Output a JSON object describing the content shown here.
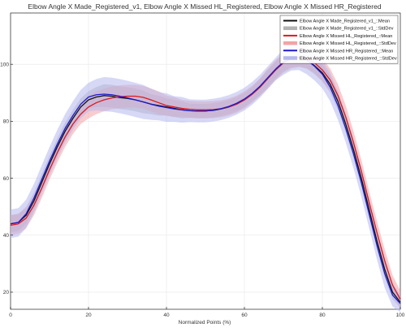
{
  "chart_data": {
    "type": "line",
    "title": "Elbow Angle X Made_Registered_v1, Elbow Angle X Missed HL_Registered, Elbow Angle X Missed HR_Registered",
    "xlabel": "Normalized Points (%)",
    "ylabel": "",
    "xlim": [
      0,
      100
    ],
    "ylim": [
      14,
      118
    ],
    "grid": true,
    "legend_position": "top-right",
    "x_ticks": [
      {
        "value": 0,
        "label": "0"
      },
      {
        "value": 20,
        "label": "20"
      },
      {
        "value": 40,
        "label": "40"
      },
      {
        "value": 60,
        "label": "60"
      },
      {
        "value": 80,
        "label": "80"
      },
      {
        "value": 100,
        "label": "100"
      }
    ],
    "y_ticks": [
      {
        "value": 20,
        "label": "20"
      },
      {
        "value": 40,
        "label": "40"
      },
      {
        "value": 60,
        "label": "60"
      },
      {
        "value": 80,
        "label": "80"
      },
      {
        "value": 100,
        "label": "100"
      }
    ],
    "x": [
      0,
      2,
      4,
      6,
      8,
      10,
      12,
      14,
      16,
      18,
      20,
      22,
      24,
      26,
      28,
      30,
      32,
      34,
      36,
      38,
      40,
      42,
      44,
      46,
      48,
      50,
      52,
      54,
      56,
      58,
      60,
      62,
      64,
      66,
      68,
      70,
      72,
      74,
      76,
      78,
      80,
      82,
      84,
      86,
      88,
      90,
      92,
      94,
      96,
      98,
      100
    ],
    "series": [
      {
        "name": "Elbow Angle X Made_Registered_v1_::Mean",
        "std_name": "Elbow Angle X Made_Registered_v1_::StdDev",
        "color": "#111111",
        "band_color": "#b3b3b3",
        "values": [
          44,
          44.5,
          47,
          52,
          58.5,
          65,
          71,
          76.5,
          81,
          85,
          87.5,
          88.5,
          89,
          88.8,
          88.3,
          88,
          87.5,
          86.8,
          86,
          85.5,
          85,
          84.5,
          84,
          83.7,
          83.6,
          83.6,
          83.8,
          84.3,
          85,
          86,
          87.5,
          89.5,
          92,
          95,
          98,
          100.5,
          102,
          102.3,
          101.5,
          99.5,
          97,
          93,
          87,
          79,
          70,
          60,
          49,
          38,
          28,
          20,
          16.5
        ],
        "std": [
          3,
          3,
          3,
          3,
          3,
          3,
          3,
          3,
          3,
          3,
          3,
          3.5,
          4,
          4,
          4,
          4,
          4,
          4,
          3.5,
          3.5,
          3,
          3,
          3,
          2.5,
          2.5,
          2.5,
          2.5,
          2.5,
          2.5,
          2.5,
          2.5,
          2.5,
          3,
          3,
          3,
          3,
          3,
          3,
          3,
          3,
          3,
          3,
          3,
          3,
          3,
          3,
          3,
          3,
          3,
          2.5,
          2
        ]
      },
      {
        "name": "Elbow Angle X Missed HL_Registered_::Mean",
        "std_name": "Elbow Angle X Missed HL_Registered_::StdDev",
        "color": "#e0161b",
        "band_color": "#f4a3a5",
        "values": [
          43.5,
          44,
          46,
          50.5,
          56.5,
          63,
          69,
          74.5,
          79,
          82.5,
          85,
          86.5,
          87.5,
          88.2,
          88.6,
          88.8,
          88.8,
          88.4,
          87.5,
          86.5,
          85.5,
          85,
          84.5,
          84.2,
          84,
          84,
          84.1,
          84.4,
          85,
          86,
          87.5,
          89.5,
          92,
          95,
          98,
          100.5,
          102,
          102.5,
          102,
          100.5,
          98,
          94.5,
          89,
          81.5,
          72.5,
          62.5,
          51.5,
          41,
          31,
          22.5,
          17.5
        ],
        "std": [
          3.5,
          3.5,
          3.5,
          3.5,
          3.5,
          3.5,
          3.5,
          3.5,
          3.5,
          3.5,
          4,
          4,
          4,
          4,
          4,
          4,
          4,
          4,
          4,
          4,
          3.5,
          3.5,
          3,
          3,
          3,
          3,
          3,
          3,
          3,
          3,
          3,
          3,
          3,
          3.5,
          3.5,
          3.5,
          3.5,
          3.5,
          3.5,
          3.5,
          4,
          4,
          4,
          4,
          4,
          4,
          4,
          4,
          4,
          3.5,
          3
        ]
      },
      {
        "name": "Elbow Angle X Missed HR_Registered_::Mean",
        "std_name": "Elbow Angle X Missed HR_Registered_::StdDev",
        "color": "#1a1acc",
        "band_color": "#b5b8ee",
        "values": [
          44,
          44.5,
          47.5,
          53,
          59.5,
          66,
          72,
          77.5,
          82,
          86,
          88.5,
          89.3,
          89.5,
          89.3,
          88.8,
          88.2,
          87.5,
          86.8,
          86,
          85.3,
          84.8,
          84.3,
          84,
          83.7,
          83.6,
          83.6,
          83.9,
          84.4,
          85.2,
          86.3,
          87.8,
          89.8,
          92.3,
          95.3,
          98.3,
          100.8,
          102.3,
          102.5,
          101.5,
          99.3,
          96.5,
          92,
          85.5,
          77.5,
          68.5,
          58.5,
          47.5,
          36.5,
          26.5,
          19,
          16
        ],
        "std": [
          5,
          5,
          5,
          5,
          5,
          5,
          5,
          5,
          5,
          5,
          5,
          5.5,
          6,
          6,
          6,
          6,
          6,
          6,
          5.5,
          5,
          5,
          4.5,
          4.5,
          4,
          4,
          4,
          4,
          4,
          4,
          4,
          4,
          4,
          4,
          4,
          4,
          4.5,
          4.5,
          4.5,
          5,
          5,
          5,
          5,
          5,
          5,
          5,
          5,
          5,
          5,
          5,
          4,
          3
        ]
      }
    ]
  }
}
